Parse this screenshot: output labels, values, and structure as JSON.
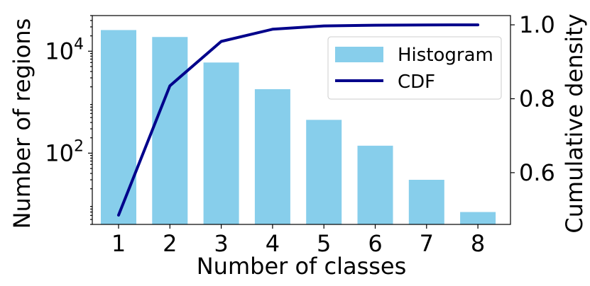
{
  "chart_data": {
    "type": "bar",
    "categories": [
      "1",
      "2",
      "3",
      "4",
      "5",
      "6",
      "7",
      "8"
    ],
    "series": [
      {
        "name": "Histogram",
        "kind": "bar",
        "axis": "left",
        "color": "#87ceeb",
        "values": [
          26000,
          19000,
          6000,
          1800,
          450,
          140,
          30,
          7
        ]
      },
      {
        "name": "CDF",
        "kind": "line",
        "axis": "right",
        "color": "#00008b",
        "values": [
          0.485,
          0.835,
          0.955,
          0.988,
          0.997,
          0.999,
          0.9998,
          1.0
        ]
      }
    ],
    "xlabel": "Number of classes",
    "ylabel_left": "Number of regions",
    "ylabel_right": "Cumulative density",
    "ylim_left": [
      4,
      50000
    ],
    "yscale_left": "log",
    "yticks_left": [
      {
        "value": 100,
        "base": "10",
        "exp": "2"
      },
      {
        "value": 10000,
        "base": "10",
        "exp": "4"
      }
    ],
    "ylim_right": [
      0.46,
      1.025
    ],
    "yticks_right": [
      "0.6",
      "0.8",
      "1.0"
    ],
    "legend": {
      "position": "top-right",
      "entries": [
        "Histogram",
        "CDF"
      ]
    },
    "grid": false
  }
}
